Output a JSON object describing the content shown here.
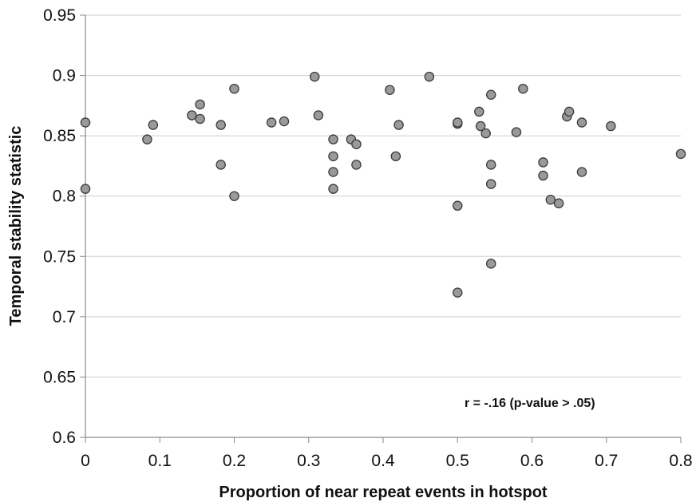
{
  "chart_data": {
    "type": "scatter",
    "xlabel": "Proportion of near repeat events in hotspot",
    "ylabel": "Temporal stability statistic",
    "xlim": [
      0,
      0.8
    ],
    "ylim": [
      0.6,
      0.95
    ],
    "x_ticks": [
      "0",
      "0.1",
      "0.2",
      "0.3",
      "0.4",
      "0.5",
      "0.6",
      "0.7",
      "0.8"
    ],
    "y_ticks": [
      "0.6",
      "0.65",
      "0.7",
      "0.75",
      "0.8",
      "0.85",
      "0.9",
      "0.95"
    ],
    "grid": "horizontal",
    "annotation": "r = -.16 (p-value > .05)",
    "colors": {
      "marker_fill": "#9a9a9a",
      "marker_stroke": "#3c3c3c",
      "grid": "#cfcfcf",
      "axis": "#8a8a8a"
    },
    "points": [
      {
        "x": 0.0,
        "y": 0.861
      },
      {
        "x": 0.0,
        "y": 0.806
      },
      {
        "x": 0.083,
        "y": 0.847
      },
      {
        "x": 0.091,
        "y": 0.859
      },
      {
        "x": 0.143,
        "y": 0.867
      },
      {
        "x": 0.154,
        "y": 0.876
      },
      {
        "x": 0.154,
        "y": 0.864
      },
      {
        "x": 0.182,
        "y": 0.859
      },
      {
        "x": 0.182,
        "y": 0.826
      },
      {
        "x": 0.2,
        "y": 0.889
      },
      {
        "x": 0.2,
        "y": 0.8
      },
      {
        "x": 0.25,
        "y": 0.861
      },
      {
        "x": 0.267,
        "y": 0.862
      },
      {
        "x": 0.308,
        "y": 0.899
      },
      {
        "x": 0.313,
        "y": 0.867
      },
      {
        "x": 0.333,
        "y": 0.847
      },
      {
        "x": 0.333,
        "y": 0.833
      },
      {
        "x": 0.333,
        "y": 0.82
      },
      {
        "x": 0.333,
        "y": 0.806
      },
      {
        "x": 0.357,
        "y": 0.847
      },
      {
        "x": 0.364,
        "y": 0.843
      },
      {
        "x": 0.364,
        "y": 0.826
      },
      {
        "x": 0.409,
        "y": 0.888
      },
      {
        "x": 0.417,
        "y": 0.833
      },
      {
        "x": 0.421,
        "y": 0.859
      },
      {
        "x": 0.462,
        "y": 0.899
      },
      {
        "x": 0.5,
        "y": 0.86
      },
      {
        "x": 0.5,
        "y": 0.861
      },
      {
        "x": 0.5,
        "y": 0.792
      },
      {
        "x": 0.5,
        "y": 0.72
      },
      {
        "x": 0.529,
        "y": 0.87
      },
      {
        "x": 0.531,
        "y": 0.858
      },
      {
        "x": 0.538,
        "y": 0.852
      },
      {
        "x": 0.545,
        "y": 0.884
      },
      {
        "x": 0.545,
        "y": 0.826
      },
      {
        "x": 0.545,
        "y": 0.81
      },
      {
        "x": 0.545,
        "y": 0.744
      },
      {
        "x": 0.588,
        "y": 0.889
      },
      {
        "x": 0.579,
        "y": 0.853
      },
      {
        "x": 0.615,
        "y": 0.828
      },
      {
        "x": 0.615,
        "y": 0.817
      },
      {
        "x": 0.625,
        "y": 0.797
      },
      {
        "x": 0.636,
        "y": 0.794
      },
      {
        "x": 0.647,
        "y": 0.866
      },
      {
        "x": 0.65,
        "y": 0.87
      },
      {
        "x": 0.667,
        "y": 0.861
      },
      {
        "x": 0.667,
        "y": 0.82
      },
      {
        "x": 0.706,
        "y": 0.858
      },
      {
        "x": 0.8,
        "y": 0.835
      }
    ]
  }
}
